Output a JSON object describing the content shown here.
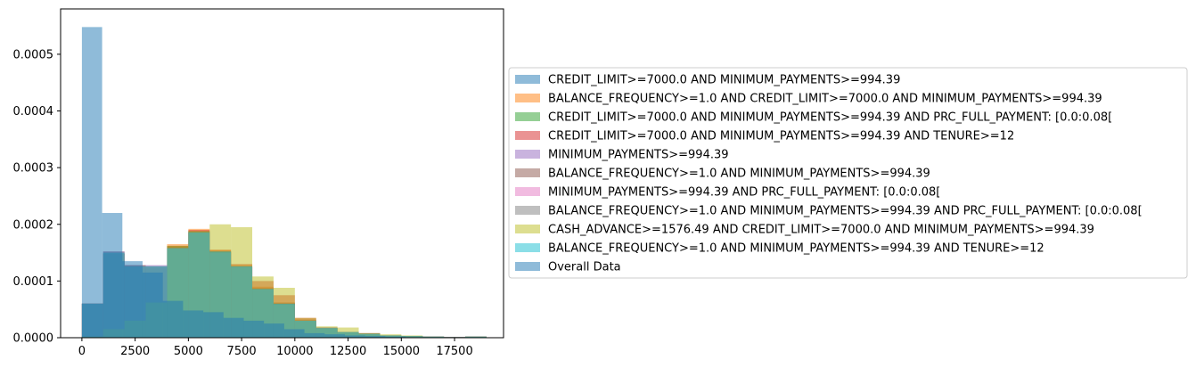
{
  "chart_data": {
    "type": "histogram",
    "density": true,
    "title": "",
    "xlabel": "",
    "ylabel": "",
    "xlim": [
      -1000,
      19800
    ],
    "ylim": [
      0,
      0.00058
    ],
    "xticks": [
      0,
      2500,
      5000,
      7500,
      10000,
      12500,
      15000,
      17500
    ],
    "xtick_labels": [
      "0",
      "2500",
      "5000",
      "7500",
      "10000",
      "12500",
      "15000",
      "17500"
    ],
    "yticks": [
      0,
      0.0001,
      0.0002,
      0.0003,
      0.0004,
      0.0005
    ],
    "ytick_labels": [
      "0.0000",
      "0.0001",
      "0.0002",
      "0.0003",
      "0.0004",
      "0.0005"
    ],
    "grid": false,
    "legend_position": "outside-right",
    "series": [
      {
        "name": "CREDIT_LIMIT>=7000.0 AND MINIMUM_PAYMENTS>=994.39",
        "color": "#1f77b4",
        "opacity": 0.5,
        "bin_start": 0,
        "bin_width": 1000,
        "values": [
          6e-05,
          0.000148,
          0.000126,
          0.000124,
          0.00016,
          0.000188,
          0.000152,
          0.000125,
          8.8e-05,
          6.2e-05,
          3.2e-05,
          1.8e-05,
          1e-05,
          8e-06,
          4e-06,
          3e-06,
          2e-06,
          1e-06,
          2e-06
        ]
      },
      {
        "name": "BALANCE_FREQUENCY>=1.0 AND CREDIT_LIMIT>=7000.0 AND MINIMUM_PAYMENTS>=994.39",
        "color": "#ff7f0e",
        "opacity": 0.5,
        "bin_start": 0,
        "bin_width": 1000,
        "values": [
          6e-05,
          0.000148,
          0.000126,
          0.000124,
          0.000165,
          0.000192,
          0.000155,
          0.000128,
          9e-05,
          6.2e-05,
          3.2e-05,
          1.7e-05,
          1e-05,
          8e-06,
          4e-06,
          3e-06,
          2e-06,
          1e-06,
          2e-06
        ]
      },
      {
        "name": "CREDIT_LIMIT>=7000.0 AND MINIMUM_PAYMENTS>=994.39 AND PRC_FULL_PAYMENT: [0.0:0.08[",
        "color": "#2ca02c",
        "opacity": 0.5,
        "bin_start": 0,
        "bin_width": 1000,
        "values": [
          6e-05,
          0.000148,
          0.000124,
          0.000122,
          0.000162,
          0.000188,
          0.000152,
          0.000125,
          8.6e-05,
          6e-05,
          3e-05,
          1.7e-05,
          1e-05,
          7e-06,
          4e-06,
          3e-06,
          2e-06,
          1e-06,
          2e-06
        ]
      },
      {
        "name": "CREDIT_LIMIT>=7000.0 AND MINIMUM_PAYMENTS>=994.39 AND TENURE>=12",
        "color": "#d62728",
        "opacity": 0.5,
        "bin_start": 0,
        "bin_width": 1000,
        "values": [
          6e-05,
          0.000148,
          0.000126,
          0.000124,
          0.000162,
          0.00019,
          0.000155,
          0.00013,
          0.0001,
          7.5e-05,
          3.5e-05,
          1.8e-05,
          1e-05,
          8e-06,
          4e-06,
          3e-06,
          2e-06,
          1e-06,
          2e-06
        ]
      },
      {
        "name": "MINIMUM_PAYMENTS>=994.39",
        "color": "#9467bd",
        "opacity": 0.5,
        "bin_start": 0,
        "bin_width": 1000,
        "values": [
          6e-05,
          0.000152,
          0.000128,
          0.000128,
          0.000158,
          0.000185,
          0.00015,
          0.000125,
          8.5e-05,
          6e-05,
          3e-05,
          1.8e-05,
          1e-05,
          7e-06,
          4e-06,
          3e-06,
          2e-06,
          1e-06,
          2e-06
        ]
      },
      {
        "name": "BALANCE_FREQUENCY>=1.0 AND MINIMUM_PAYMENTS>=994.39",
        "color": "#8c564b",
        "opacity": 0.5,
        "bin_start": 0,
        "bin_width": 1000,
        "values": [
          6e-05,
          0.00015,
          0.000128,
          0.000126,
          0.00016,
          0.000186,
          0.000152,
          0.000126,
          8.6e-05,
          6e-05,
          3e-05,
          1.7e-05,
          1e-05,
          7e-06,
          4e-06,
          3e-06,
          2e-06,
          1e-06,
          2e-06
        ]
      },
      {
        "name": "MINIMUM_PAYMENTS>=994.39 AND PRC_FULL_PAYMENT: [0.0:0.08[",
        "color": "#e377c2",
        "opacity": 0.5,
        "bin_start": 0,
        "bin_width": 1000,
        "values": [
          6e-05,
          0.000152,
          0.000126,
          0.000126,
          0.000158,
          0.000185,
          0.00015,
          0.000124,
          8.5e-05,
          5.8e-05,
          3e-05,
          1.7e-05,
          1e-05,
          7e-06,
          4e-06,
          3e-06,
          2e-06,
          1e-06,
          2e-06
        ]
      },
      {
        "name": "BALANCE_FREQUENCY>=1.0 AND MINIMUM_PAYMENTS>=994.39 AND PRC_FULL_PAYMENT: [0.0:0.08[",
        "color": "#7f7f7f",
        "opacity": 0.5,
        "bin_start": 0,
        "bin_width": 1000,
        "values": [
          6e-05,
          0.000152,
          0.000126,
          0.000126,
          0.000158,
          0.000185,
          0.00015,
          0.000124,
          8.5e-05,
          5.8e-05,
          3e-05,
          1.7e-05,
          1e-05,
          7e-06,
          4e-06,
          3e-06,
          2e-06,
          1e-06,
          2e-06
        ]
      },
      {
        "name": "CASH_ADVANCE>=1576.49 AND CREDIT_LIMIT>=7000.0 AND MINIMUM_PAYMENTS>=994.39",
        "color": "#bcbd22",
        "opacity": 0.5,
        "bin_start": 0,
        "bin_width": 1000,
        "values": [
          2e-06,
          1.5e-05,
          3e-05,
          6.2e-05,
          0.000162,
          0.000188,
          0.0002,
          0.000195,
          0.000108,
          8.8e-05,
          3.5e-05,
          2e-05,
          1.8e-05,
          8e-06,
          6e-06,
          4e-06,
          2e-06,
          1e-06,
          2e-06
        ]
      },
      {
        "name": "BALANCE_FREQUENCY>=1.0 AND MINIMUM_PAYMENTS>=994.39 AND TENURE>=12",
        "color": "#17becf",
        "opacity": 0.5,
        "bin_start": 0,
        "bin_width": 1000,
        "values": [
          6e-05,
          0.00015,
          0.000126,
          0.000126,
          0.000158,
          0.000186,
          0.000152,
          0.000126,
          8.6e-05,
          6e-05,
          3e-05,
          1.7e-05,
          1e-05,
          7e-06,
          4e-06,
          3e-06,
          2e-06,
          1e-06,
          2e-06
        ]
      },
      {
        "name": "Overall Data",
        "color": "#1f77b4",
        "opacity": 0.5,
        "bin_start": 0,
        "bin_width": 950,
        "values": [
          0.000548,
          0.00022,
          0.000135,
          0.000115,
          6.5e-05,
          4.8e-05,
          4.5e-05,
          3.5e-05,
          3e-05,
          2.5e-05,
          1.5e-05,
          8e-06,
          6e-06,
          4e-06,
          3e-06,
          2e-06,
          1e-06,
          1e-06,
          1e-06,
          1e-06
        ]
      }
    ]
  }
}
